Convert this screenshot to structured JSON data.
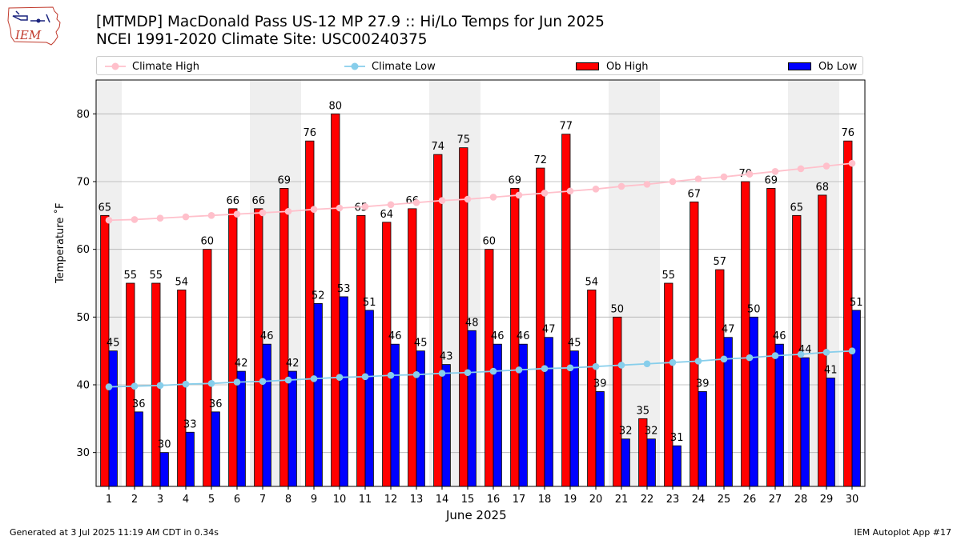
{
  "header": {
    "title_line1": "[MTMDP] MacDonald Pass US-12 MP 27.9  :: Hi/Lo Temps for Jun 2025",
    "title_line2": "NCEI 1991-2020 Climate Site: USC00240375",
    "logo_text": "IEM"
  },
  "footer": {
    "generated": "Generated at 3 Jul 2025 11:19 AM CDT in 0.34s",
    "app": "IEM Autoplot App #17"
  },
  "colors": {
    "ob_high": "#ff0000",
    "ob_low": "#0000ff",
    "climate_high": "#ffc0cb",
    "climate_low": "#87ceeb",
    "weekend_band": "#efefef",
    "grid": "#b0b0b0"
  },
  "chart_data": {
    "type": "bar",
    "xlabel": "June 2025",
    "ylabel": "Temperature $^\\circ$F",
    "ylabel_display": "Temperature ˚F",
    "ylim": [
      25,
      85
    ],
    "yticks": [
      30,
      40,
      50,
      60,
      70,
      80
    ],
    "grid": "horizontal",
    "legend_position": "top",
    "categories": [
      1,
      2,
      3,
      4,
      5,
      6,
      7,
      8,
      9,
      10,
      11,
      12,
      13,
      14,
      15,
      16,
      17,
      18,
      19,
      20,
      21,
      22,
      23,
      24,
      25,
      26,
      27,
      28,
      29,
      30
    ],
    "shaded_days": [
      1,
      7,
      8,
      14,
      15,
      21,
      22,
      28,
      29
    ],
    "series": [
      {
        "name": "Climate High",
        "kind": "line",
        "values": [
          64.3,
          64.4,
          64.6,
          64.8,
          65.0,
          65.2,
          65.4,
          65.6,
          65.9,
          66.1,
          66.3,
          66.6,
          66.9,
          67.2,
          67.4,
          67.7,
          68.0,
          68.3,
          68.6,
          68.9,
          69.3,
          69.6,
          70.0,
          70.4,
          70.7,
          71.1,
          71.5,
          71.9,
          72.3,
          72.7
        ]
      },
      {
        "name": "Climate Low",
        "kind": "line",
        "values": [
          39.7,
          39.8,
          39.9,
          40.1,
          40.2,
          40.4,
          40.5,
          40.7,
          40.9,
          41.1,
          41.2,
          41.4,
          41.5,
          41.7,
          41.8,
          42.0,
          42.2,
          42.4,
          42.5,
          42.7,
          42.9,
          43.1,
          43.3,
          43.5,
          43.8,
          44.0,
          44.3,
          44.5,
          44.8,
          45.0
        ]
      },
      {
        "name": "Ob High",
        "kind": "bar",
        "values": [
          65,
          55,
          55,
          54,
          60,
          66,
          66,
          69,
          76,
          80,
          65,
          64,
          66,
          74,
          75,
          60,
          69,
          72,
          77,
          54,
          50,
          35,
          55,
          67,
          57,
          70,
          69,
          65,
          68,
          76
        ]
      },
      {
        "name": "Ob Low",
        "kind": "bar",
        "values": [
          45,
          36,
          30,
          33,
          36,
          42,
          46,
          42,
          52,
          53,
          51,
          46,
          45,
          43,
          48,
          46,
          46,
          47,
          45,
          39,
          32,
          32,
          31,
          39,
          47,
          50,
          46,
          44,
          41,
          51
        ]
      }
    ]
  }
}
